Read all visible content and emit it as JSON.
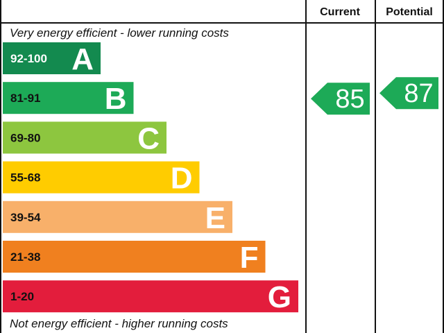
{
  "chart_data": {
    "type": "bar",
    "title": "",
    "columns": {
      "current_label": "Current",
      "potential_label": "Potential"
    },
    "top_caption": "Very energy efficient - lower running costs",
    "bottom_caption": "Not energy efficient - higher running costs",
    "bands": [
      {
        "letter": "A",
        "range": "92-100",
        "min": 92,
        "max": 100,
        "color": "#138a4f",
        "range_color": "#ffffff"
      },
      {
        "letter": "B",
        "range": "81-91",
        "min": 81,
        "max": 91,
        "color": "#1daa57",
        "range_color": "#111111"
      },
      {
        "letter": "C",
        "range": "69-80",
        "min": 69,
        "max": 80,
        "color": "#8dc63f",
        "range_color": "#111111"
      },
      {
        "letter": "D",
        "range": "55-68",
        "min": 55,
        "max": 68,
        "color": "#ffcc00",
        "range_color": "#111111"
      },
      {
        "letter": "E",
        "range": "39-54",
        "min": 39,
        "max": 54,
        "color": "#f8b06a",
        "range_color": "#111111"
      },
      {
        "letter": "F",
        "range": "21-38",
        "min": 21,
        "max": 38,
        "color": "#f0801f",
        "range_color": "#111111"
      },
      {
        "letter": "G",
        "range": "1-20",
        "min": 1,
        "max": 20,
        "color": "#e31d3c",
        "range_color": "#111111"
      }
    ],
    "current": {
      "value": 85,
      "label": "85",
      "band": "B",
      "color": "#1daa57"
    },
    "potential": {
      "value": 87,
      "label": "87",
      "band": "B",
      "color": "#1daa57"
    }
  }
}
